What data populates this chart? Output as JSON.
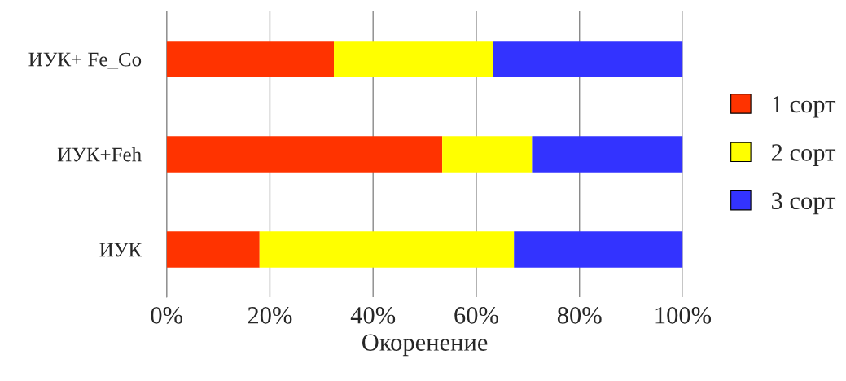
{
  "chart_data": {
    "type": "bar",
    "orientation": "horizontal",
    "stacked": true,
    "xlabel": "Окоренение",
    "categories": [
      "ИУК+ Fe_Co",
      "ИУК+Feh",
      "ИУК"
    ],
    "series": [
      {
        "name": "1 сорт",
        "color": "#ff3300",
        "values": [
          32.4,
          53.4,
          18.0
        ]
      },
      {
        "name": "2 сорт",
        "color": "#ffff00",
        "values": [
          30.8,
          17.4,
          49.3
        ]
      },
      {
        "name": "3 сорт",
        "color": "#3333ff",
        "values": [
          36.8,
          29.2,
          32.7
        ]
      }
    ],
    "xlim": [
      0,
      100
    ],
    "xticks": [
      {
        "value": 0,
        "label": "0%"
      },
      {
        "value": 20,
        "label": "20%"
      },
      {
        "value": 40,
        "label": "40%"
      },
      {
        "value": 60,
        "label": "60%"
      },
      {
        "value": 80,
        "label": "80%"
      },
      {
        "value": 100,
        "label": "100%"
      }
    ],
    "grid": "x",
    "legend": "right"
  }
}
